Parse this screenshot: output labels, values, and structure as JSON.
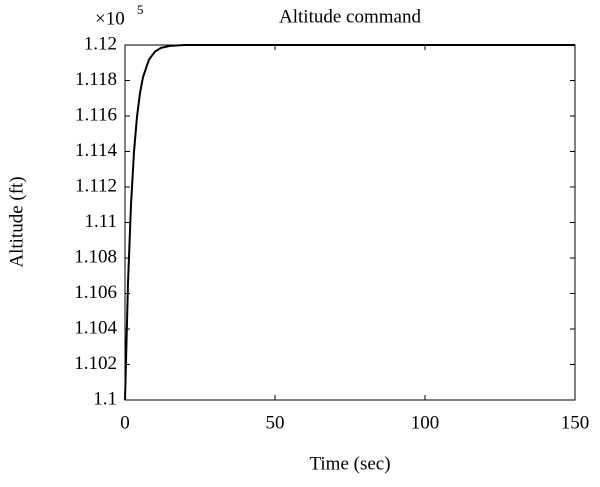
{
  "chart_data": {
    "type": "line",
    "title": "Altitude command",
    "x_label": "Time (sec)",
    "y_label": "Altitude (ft)",
    "y_multiplier": "×10",
    "y_multiplier_exponent": "5",
    "x": [
      0,
      1,
      2,
      3,
      4,
      5,
      6,
      8,
      10,
      12,
      15,
      20,
      25,
      30,
      150
    ],
    "series": [
      {
        "name": "Altitude",
        "color": "#000000",
        "values": [
          1.1,
          1.10659,
          1.11101,
          1.11398,
          1.11596,
          1.11729,
          1.11819,
          1.11918,
          1.11963,
          1.11984,
          1.11995,
          1.12,
          1.12,
          1.12,
          1.12
        ]
      }
    ],
    "xlim": [
      0,
      150
    ],
    "xticks": [
      0,
      50,
      100,
      150
    ],
    "ylim": [
      1.1,
      1.12
    ],
    "yticks": [
      1.1,
      1.102,
      1.104,
      1.106,
      1.108,
      1.11,
      1.112,
      1.114,
      1.116,
      1.118,
      1.12
    ],
    "grid": false
  }
}
